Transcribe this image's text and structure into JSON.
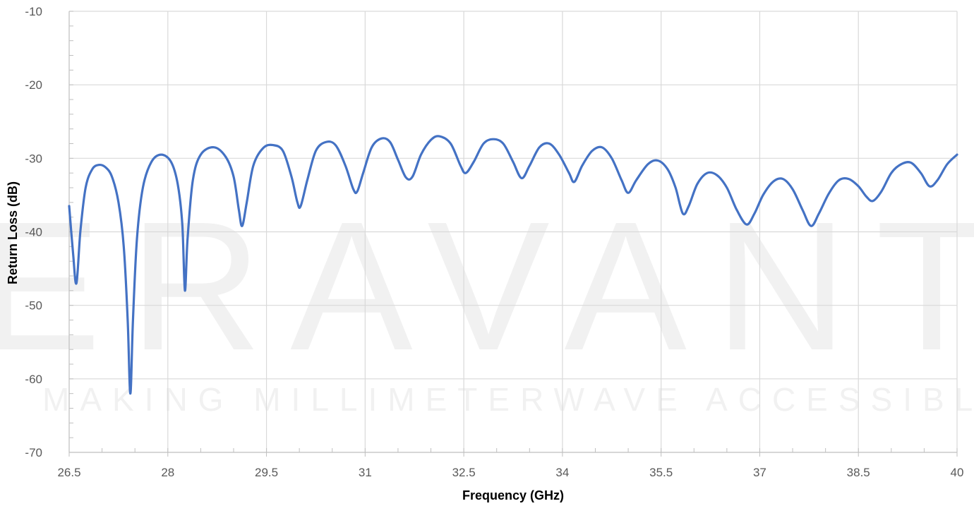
{
  "watermark": {
    "brand": "ERAVANT",
    "tagline": "MAKING MILLIMETERWAVE ACCESSIBLE"
  },
  "chart_data": {
    "type": "line",
    "title": "",
    "xlabel": "Frequency (GHz)",
    "ylabel": "Return Loss (dB)",
    "xlim": [
      26.5,
      40
    ],
    "ylim": [
      -70,
      -10
    ],
    "x_ticks": [
      "26.5",
      "28",
      "29.5",
      "31",
      "32.5",
      "34",
      "35.5",
      "37",
      "38.5",
      "40"
    ],
    "y_ticks": [
      "-10",
      "-20",
      "-30",
      "-40",
      "-50",
      "-60",
      "-70"
    ],
    "grid": true,
    "legend": "none",
    "colors": {
      "series": "#4472c4",
      "grid": "#d9d9d9",
      "axis": "#bfbfbf"
    },
    "series": [
      {
        "points": [
          [
            26.5,
            -36.5
          ],
          [
            26.56,
            -43
          ],
          [
            26.61,
            -47
          ],
          [
            26.67,
            -40
          ],
          [
            26.75,
            -34
          ],
          [
            26.85,
            -31.5
          ],
          [
            26.95,
            -30.9
          ],
          [
            27.05,
            -31.2
          ],
          [
            27.15,
            -32.5
          ],
          [
            27.25,
            -36
          ],
          [
            27.33,
            -42
          ],
          [
            27.39,
            -52
          ],
          [
            27.43,
            -62
          ],
          [
            27.47,
            -52
          ],
          [
            27.53,
            -41
          ],
          [
            27.62,
            -34
          ],
          [
            27.75,
            -30.5
          ],
          [
            27.9,
            -29.5
          ],
          [
            28.05,
            -30.5
          ],
          [
            28.15,
            -33.5
          ],
          [
            28.22,
            -39
          ],
          [
            28.26,
            -48
          ],
          [
            28.3,
            -41
          ],
          [
            28.38,
            -33
          ],
          [
            28.5,
            -29.5
          ],
          [
            28.7,
            -28.5
          ],
          [
            28.88,
            -29.8
          ],
          [
            29.0,
            -32.5
          ],
          [
            29.08,
            -37
          ],
          [
            29.13,
            -39.2
          ],
          [
            29.2,
            -36
          ],
          [
            29.3,
            -31
          ],
          [
            29.45,
            -28.6
          ],
          [
            29.6,
            -28.2
          ],
          [
            29.75,
            -29
          ],
          [
            29.88,
            -32.5
          ],
          [
            29.97,
            -36
          ],
          [
            30.02,
            -36.5
          ],
          [
            30.12,
            -33
          ],
          [
            30.25,
            -29
          ],
          [
            30.4,
            -27.8
          ],
          [
            30.55,
            -28.2
          ],
          [
            30.7,
            -31
          ],
          [
            30.82,
            -34.2
          ],
          [
            30.88,
            -34.5
          ],
          [
            30.97,
            -32
          ],
          [
            31.1,
            -28.5
          ],
          [
            31.25,
            -27.3
          ],
          [
            31.38,
            -27.8
          ],
          [
            31.5,
            -30.2
          ],
          [
            31.62,
            -32.6
          ],
          [
            31.72,
            -32.5
          ],
          [
            31.85,
            -29.5
          ],
          [
            32.0,
            -27.5
          ],
          [
            32.13,
            -27
          ],
          [
            32.3,
            -28
          ],
          [
            32.45,
            -31
          ],
          [
            32.53,
            -32
          ],
          [
            32.65,
            -30.5
          ],
          [
            32.8,
            -28
          ],
          [
            32.95,
            -27.4
          ],
          [
            33.1,
            -28
          ],
          [
            33.25,
            -30.5
          ],
          [
            33.38,
            -32.7
          ],
          [
            33.5,
            -31
          ],
          [
            33.65,
            -28.5
          ],
          [
            33.8,
            -28
          ],
          [
            33.95,
            -29.5
          ],
          [
            34.1,
            -32
          ],
          [
            34.18,
            -33.2
          ],
          [
            34.3,
            -31
          ],
          [
            34.45,
            -29
          ],
          [
            34.6,
            -28.5
          ],
          [
            34.75,
            -30
          ],
          [
            34.9,
            -33
          ],
          [
            35.0,
            -34.7
          ],
          [
            35.12,
            -33
          ],
          [
            35.3,
            -30.8
          ],
          [
            35.45,
            -30.3
          ],
          [
            35.6,
            -31.5
          ],
          [
            35.72,
            -34
          ],
          [
            35.83,
            -37.5
          ],
          [
            35.92,
            -36.5
          ],
          [
            36.05,
            -33.5
          ],
          [
            36.2,
            -32
          ],
          [
            36.35,
            -32.3
          ],
          [
            36.5,
            -34
          ],
          [
            36.65,
            -37
          ],
          [
            36.8,
            -39
          ],
          [
            36.92,
            -37.5
          ],
          [
            37.05,
            -35
          ],
          [
            37.2,
            -33.2
          ],
          [
            37.35,
            -32.8
          ],
          [
            37.5,
            -34.2
          ],
          [
            37.65,
            -37
          ],
          [
            37.78,
            -39.2
          ],
          [
            37.9,
            -37.5
          ],
          [
            38.05,
            -34.8
          ],
          [
            38.2,
            -33
          ],
          [
            38.35,
            -32.8
          ],
          [
            38.5,
            -33.8
          ],
          [
            38.62,
            -35.2
          ],
          [
            38.72,
            -35.8
          ],
          [
            38.85,
            -34.5
          ],
          [
            39.0,
            -32
          ],
          [
            39.15,
            -30.8
          ],
          [
            39.3,
            -30.6
          ],
          [
            39.45,
            -32
          ],
          [
            39.58,
            -33.8
          ],
          [
            39.7,
            -33
          ],
          [
            39.85,
            -30.8
          ],
          [
            40.0,
            -29.5
          ]
        ]
      }
    ]
  }
}
